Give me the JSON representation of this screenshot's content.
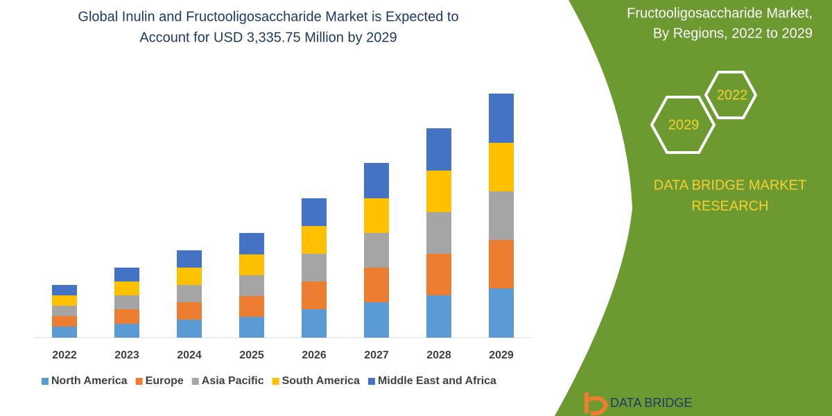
{
  "chart_data": {
    "type": "bar",
    "stacked": true,
    "title": [
      "Global Inulin and Fructooligosaccharide Market is Expected to",
      "Account for USD 3,335.75 Million by 2029"
    ],
    "categories": [
      "2022",
      "2023",
      "2024",
      "2025",
      "2026",
      "2027",
      "2028",
      "2029"
    ],
    "series": [
      {
        "name": "North America",
        "color": "#5b9bd5",
        "values": [
          16,
          20,
          26,
          30,
          41,
          51,
          61,
          71
        ]
      },
      {
        "name": "Europe",
        "color": "#ed7d31",
        "values": [
          15,
          21,
          25,
          30,
          40,
          50,
          60,
          70
        ]
      },
      {
        "name": "Asia Pacific",
        "color": "#a5a5a5",
        "values": [
          15,
          20,
          25,
          30,
          40,
          50,
          60,
          70
        ]
      },
      {
        "name": "South America",
        "color": "#ffc000",
        "values": [
          15,
          20,
          25,
          30,
          40,
          50,
          60,
          70
        ]
      },
      {
        "name": "Middle East and Africa",
        "color": "#4472c4",
        "values": [
          15,
          20,
          25,
          31,
          40,
          51,
          61,
          71
        ]
      }
    ],
    "ylim": [
      0,
      360
    ],
    "legend": "bottom"
  },
  "side_panel": {
    "title": [
      "Fructooligosaccharide Market,",
      "By Regions, 2022 to 2029"
    ],
    "hexagons": [
      "2022",
      "2029"
    ],
    "brand": [
      "DATA BRIDGE MARKET",
      "RESEARCH"
    ],
    "logo": "DATA BRIDGE"
  }
}
